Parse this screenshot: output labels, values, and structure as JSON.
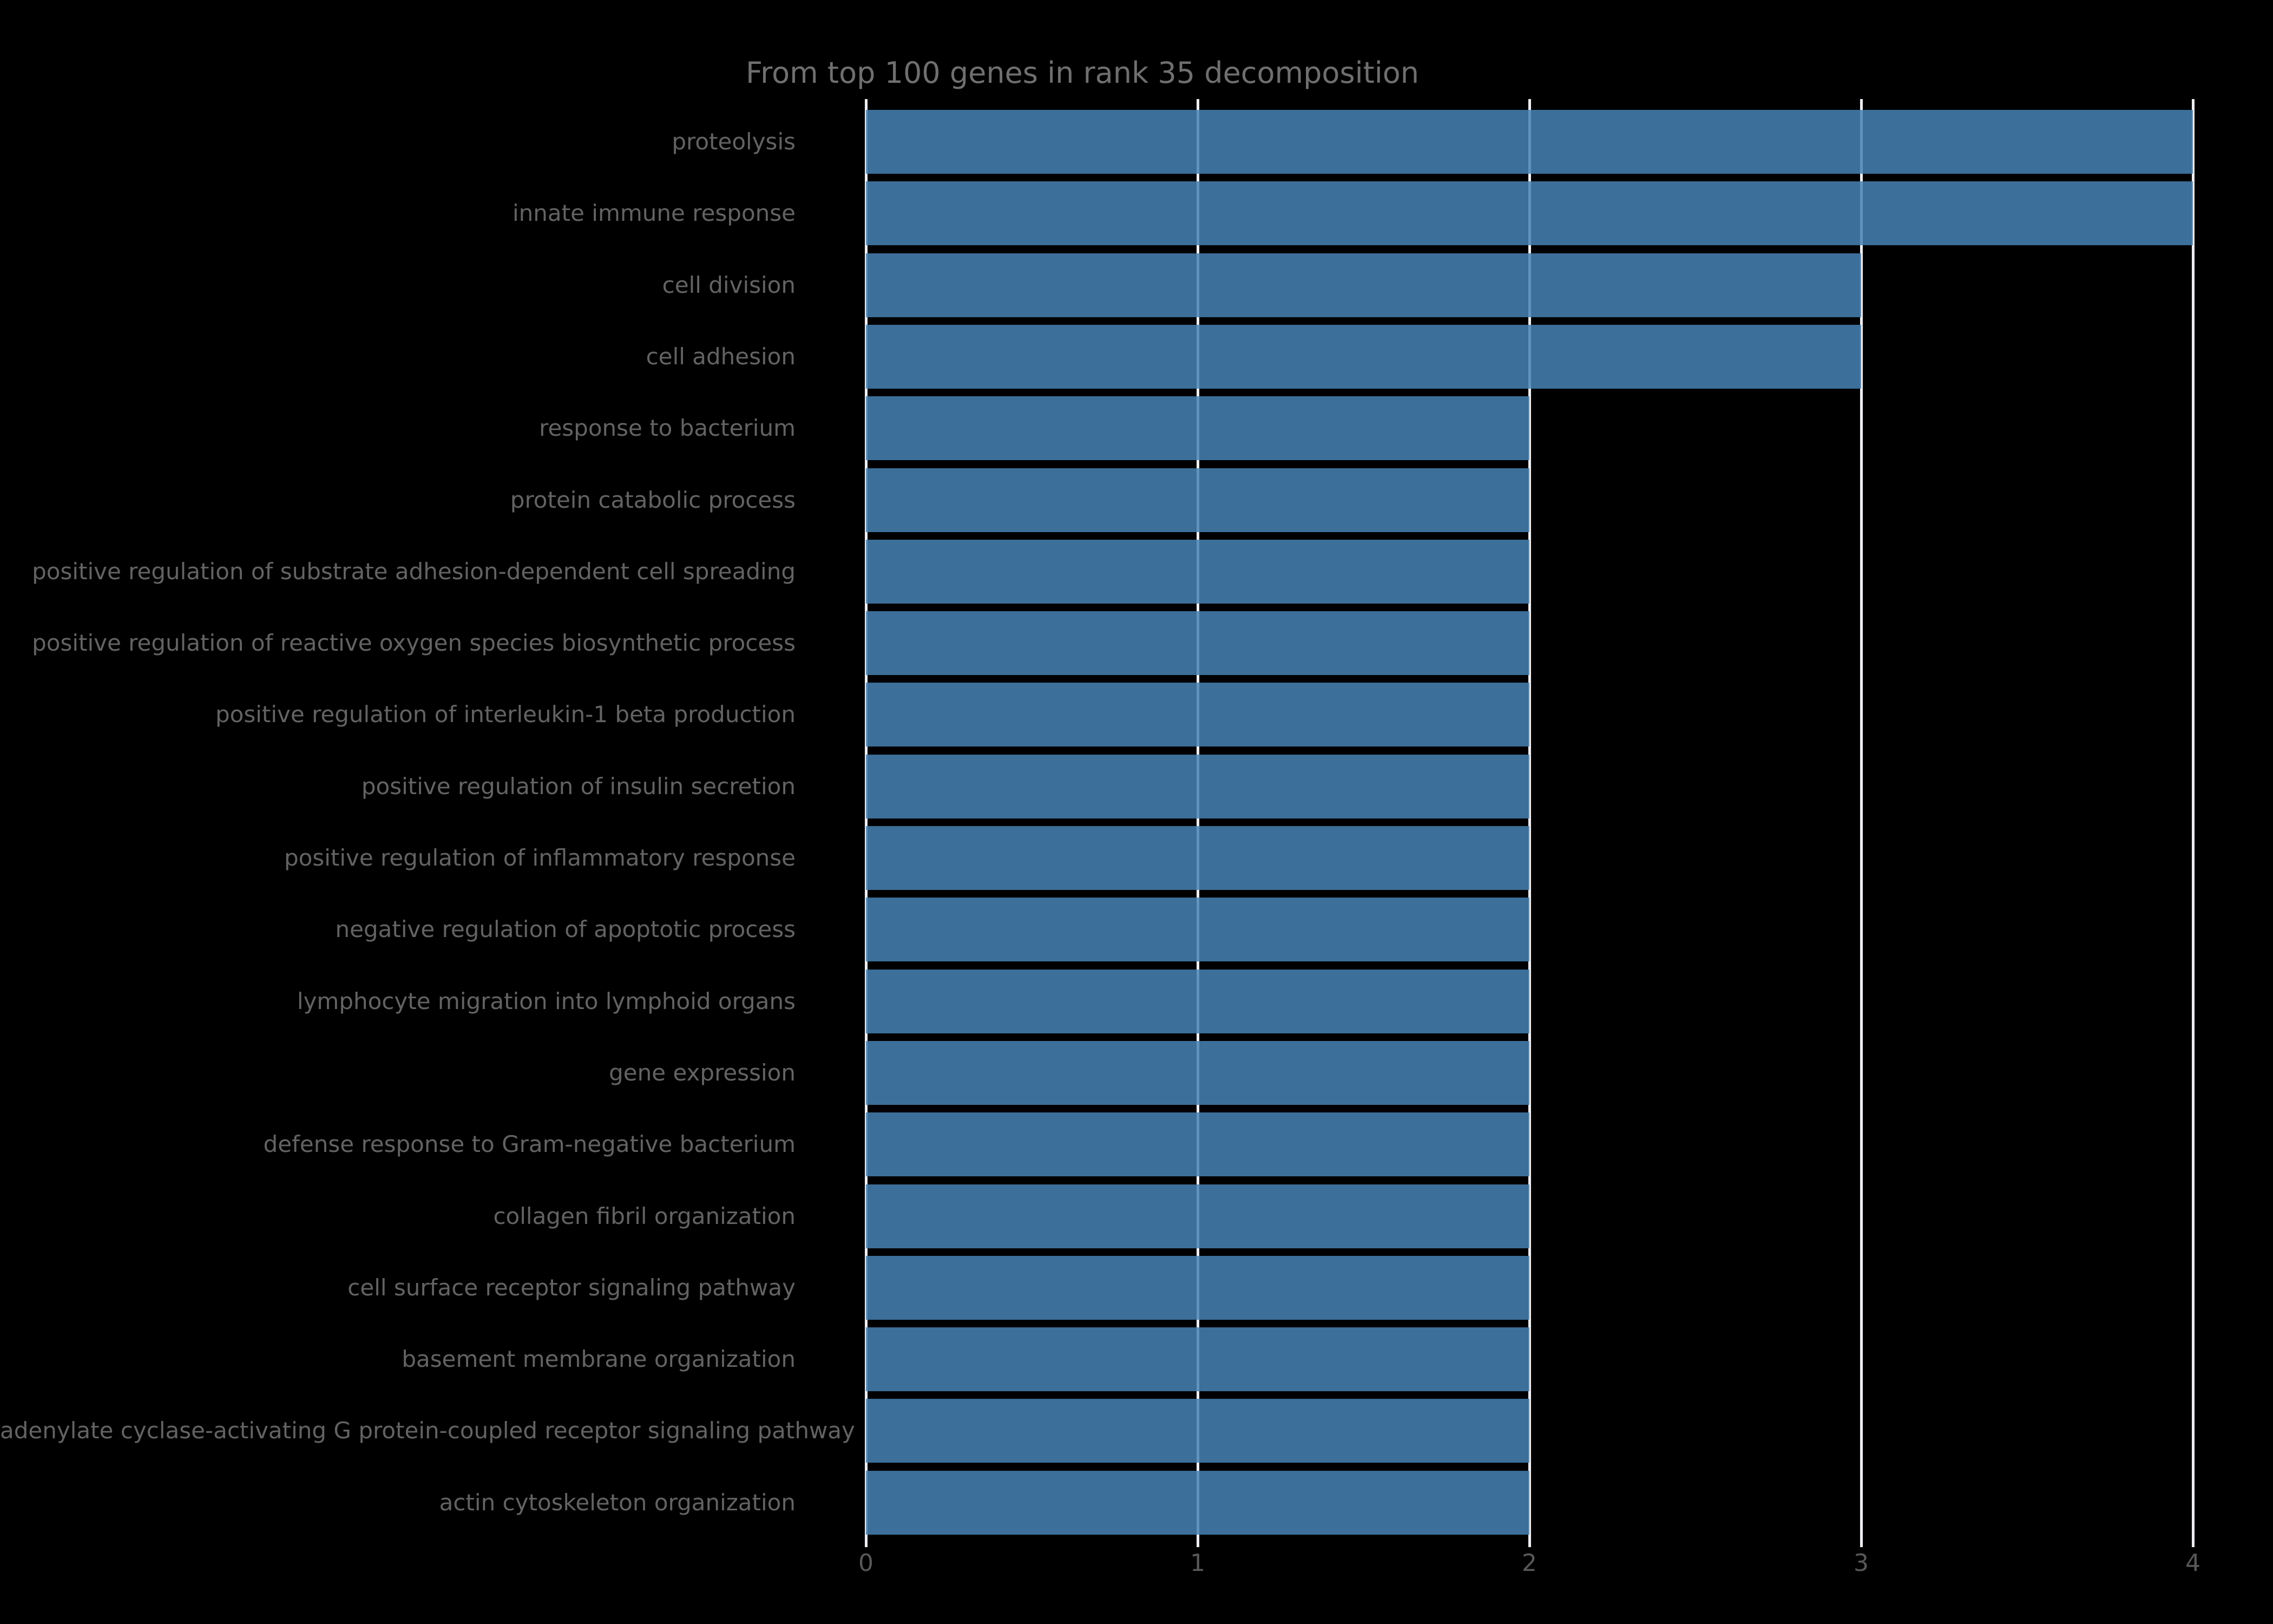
{
  "chart_data": {
    "type": "bar",
    "orientation": "horizontal",
    "title": "From top 100 genes in rank 35 decomposition",
    "categories": [
      "proteolysis",
      "innate immune response",
      "cell division",
      "cell adhesion",
      "response to bacterium",
      "protein catabolic process",
      "positive regulation of substrate adhesion-dependent cell spreading",
      "positive regulation of reactive oxygen species biosynthetic process",
      "positive regulation of interleukin-1 beta production",
      "positive regulation of insulin secretion",
      "positive regulation of inflammatory response",
      "negative regulation of apoptotic process",
      "lymphocyte migration into lymphoid organs",
      "gene expression",
      "defense response to Gram-negative bacterium",
      "collagen fibril organization",
      "cell surface receptor signaling pathway",
      "basement membrane organization",
      "adenylate cyclase-activating G protein-coupled receptor signaling pathway",
      "actin cytoskeleton organization"
    ],
    "values": [
      4,
      4,
      3,
      3,
      2,
      2,
      2,
      2,
      2,
      2,
      2,
      2,
      2,
      2,
      2,
      2,
      2,
      2,
      2,
      2
    ],
    "xlabel": "",
    "ylabel": "",
    "xlim": [
      0,
      4
    ],
    "xticks": [
      "0",
      "1",
      "2",
      "3",
      "4"
    ],
    "grid": true,
    "legend": null,
    "colors": {
      "background": "#000000",
      "bar": "#4682b4",
      "gridline": "#ededf2",
      "title_text": "#6f6f6f",
      "category_text": "#636363",
      "tick_text": "#585858"
    }
  }
}
